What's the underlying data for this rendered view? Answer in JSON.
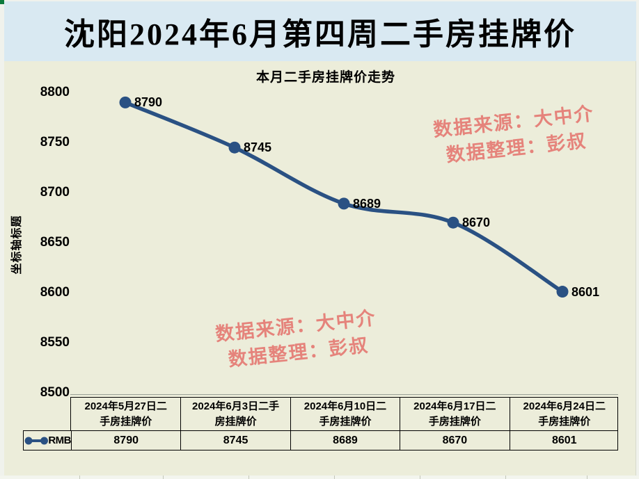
{
  "window": {
    "main_title": "沈阳2024年6月第四周二手房挂牌价"
  },
  "chart": {
    "title": "本月二手房挂牌价走势",
    "y_axis_title": "坐标轴标题",
    "watermark": {
      "source_line": "数据来源：大中介",
      "editor_line": "数据整理：彭叔"
    },
    "legend": {
      "series_label": "RMB"
    }
  },
  "chart_data": {
    "type": "line",
    "title": "本月二手房挂牌价走势",
    "ylabel": "坐标轴标题",
    "categories": [
      "2024年5月27日二手房挂牌价",
      "2024年6月3日二手房挂牌价",
      "2024年6月10日二手房挂牌价",
      "2024年6月17日二手房挂牌价",
      "2024年6月24日二手房挂牌价"
    ],
    "series": [
      {
        "name": "RMB",
        "values": [
          8790,
          8745,
          8689,
          8670,
          8601
        ]
      }
    ],
    "ylim": [
      8500,
      8800
    ],
    "y_ticks": [
      8800,
      8750,
      8700,
      8650,
      8600,
      8550,
      8500
    ],
    "grid": false,
    "smooth": true,
    "point_labels_shown": true,
    "legend_position": "bottom-table",
    "line_color": "#2a5183",
    "marker_color": "#2a5183"
  },
  "table": {
    "row_label": "RMB",
    "headers": [
      {
        "line1": "2024年5月27日二",
        "line2": "手房挂牌价"
      },
      {
        "line1": "2024年6月3日二手",
        "line2": "房挂牌价"
      },
      {
        "line1": "2024年6月10日二",
        "line2": "手房挂牌价"
      },
      {
        "line1": "2024年6月17日二",
        "line2": "手房挂牌价"
      },
      {
        "line1": "2024年6月24日二",
        "line2": "手房挂牌价"
      }
    ],
    "values": [
      "8790",
      "8745",
      "8689",
      "8670",
      "8601"
    ]
  },
  "colors": {
    "page_bg": "#f0f2ec",
    "title_band_bg": "#d9e9f2",
    "plot_bg": "#ecedda",
    "line": "#2a5183",
    "watermark": "#e5837b",
    "table_border": "#000000"
  }
}
